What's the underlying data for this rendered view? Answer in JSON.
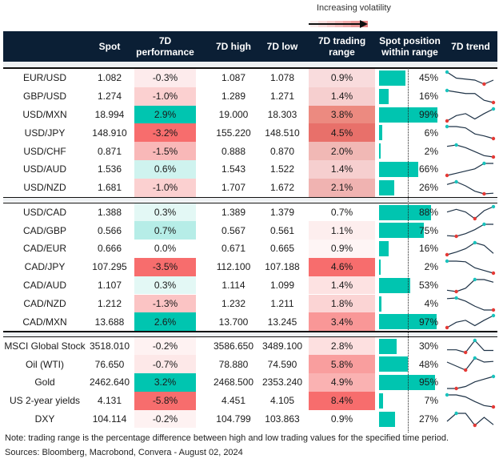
{
  "legend": {
    "label": "Increasing volatility",
    "gradient": [
      "#fdecec",
      "#fbdcdc",
      "#f8cccc",
      "#f5bcbc",
      "#f2abab",
      "#ee9a9a",
      "#ea8888"
    ]
  },
  "colors": {
    "header_bg": "#0b1f35",
    "bar": "#00c5b0",
    "trend_line": "#1f3347",
    "trend_high_marker": "#19c3bd",
    "trend_low_marker": "#e53935"
  },
  "headers": {
    "spot": "Spot",
    "perf": "7D\nperformance",
    "high": "7D high",
    "low": "7D low",
    "range": "7D trading\nrange",
    "position": "Spot position\nwithin range",
    "trend": "7D trend"
  },
  "groups": [
    {
      "rows": [
        {
          "name": "EUR/USD",
          "spot": "1.082",
          "perf": "-0.3%",
          "perf_bg": "#fdebec",
          "high": "1.087",
          "low": "1.078",
          "range": "0.9%",
          "range_bg": "#f9dcdd",
          "position": 45,
          "position_label": "45%",
          "trend": [
            6,
            3,
            2.5,
            2,
            0,
            2
          ]
        },
        {
          "name": "GBP/USD",
          "spot": "1.274",
          "perf": "-1.0%",
          "perf_bg": "#fbd0d0",
          "high": "1.289",
          "low": "1.271",
          "range": "1.4%",
          "range_bg": "#f6cfcf",
          "position": 16,
          "position_label": "16%",
          "trend": [
            8,
            7,
            6,
            6,
            1.5,
            0
          ]
        },
        {
          "name": "USD/MXN",
          "spot": "18.994",
          "perf": "2.9%",
          "perf_bg": "#00c5b0",
          "high": "19.000",
          "low": "18.303",
          "range": "3.8%",
          "range_bg": "#ec8a80",
          "position": 99,
          "position_label": "99%",
          "trend": [
            0,
            4,
            5.5,
            1.5,
            5.5,
            9
          ]
        },
        {
          "name": "USD/JPY",
          "spot": "148.910",
          "perf": "-3.2%",
          "perf_bg": "#f76d6d",
          "high": "155.220",
          "low": "148.510",
          "range": "4.5%",
          "range_bg": "#e8706a",
          "position": 6,
          "position_label": "6%",
          "trend": [
            9,
            9,
            8,
            3.5,
            2,
            0
          ]
        },
        {
          "name": "USD/CHF",
          "spot": "0.871",
          "perf": "-1.5%",
          "perf_bg": "#f9b8b8",
          "high": "0.888",
          "low": "0.870",
          "range": "2.0%",
          "range_bg": "#f1b8b5",
          "position": 2,
          "position_label": "2%",
          "trend": [
            8,
            9,
            7,
            4,
            1,
            0
          ]
        },
        {
          "name": "USD/AUD",
          "spot": "1.536",
          "perf": "0.6%",
          "perf_bg": "#cff3ef",
          "high": "1.543",
          "low": "1.522",
          "range": "1.4%",
          "range_bg": "#f6cfcf",
          "position": 66,
          "position_label": "66%",
          "trend": [
            0,
            2,
            4,
            6,
            11,
            11
          ]
        },
        {
          "name": "USD/NZD",
          "spot": "1.681",
          "perf": "-1.0%",
          "perf_bg": "#fbd0d0",
          "high": "1.707",
          "low": "1.672",
          "range": "2.1%",
          "range_bg": "#f0b3b1",
          "position": 26,
          "position_label": "26%",
          "trend": [
            7,
            9,
            6,
            2,
            0,
            0.5
          ]
        }
      ]
    },
    {
      "rows": [
        {
          "name": "USD/CAD",
          "spot": "1.388",
          "perf": "0.3%",
          "perf_bg": "#e3f8f5",
          "high": "1.389",
          "low": "1.379",
          "range": "0.7%",
          "range_bg": "#ffffff",
          "position": 88,
          "position_label": "88%",
          "trend": [
            5,
            7,
            5,
            0,
            6,
            9
          ]
        },
        {
          "name": "CAD/GBP",
          "spot": "0.566",
          "perf": "0.7%",
          "perf_bg": "#b6ede7",
          "high": "0.567",
          "low": "0.561",
          "range": "1.1%",
          "range_bg": "#fdeeee",
          "position": 75,
          "position_label": "75%",
          "trend": [
            0.5,
            0,
            2,
            5,
            9,
            9
          ]
        },
        {
          "name": "CAD/EUR",
          "spot": "0.666",
          "perf": "0.0%",
          "perf_bg": "#ffffff",
          "high": "0.671",
          "low": "0.665",
          "range": "0.9%",
          "range_bg": "#fef5f5",
          "position": 16,
          "position_label": "16%",
          "trend": [
            0,
            2,
            4.5,
            9,
            7,
            1
          ]
        },
        {
          "name": "CAD/JPY",
          "spot": "107.295",
          "perf": "-3.5%",
          "perf_bg": "#f76d6d",
          "high": "112.100",
          "low": "107.188",
          "range": "4.6%",
          "range_bg": "#f76d6d",
          "position": 2,
          "position_label": "2%",
          "trend": [
            9,
            9,
            8.5,
            4,
            2,
            0
          ]
        },
        {
          "name": "CAD/AUD",
          "spot": "1.107",
          "perf": "0.3%",
          "perf_bg": "#e3f8f5",
          "high": "1.114",
          "low": "1.099",
          "range": "1.4%",
          "range_bg": "#fde2e2",
          "position": 53,
          "position_label": "53%",
          "trend": [
            1,
            0,
            2.5,
            9,
            9,
            7
          ]
        },
        {
          "name": "CAD/NZD",
          "spot": "1.212",
          "perf": "-1.3%",
          "perf_bg": "#fbc4c4",
          "high": "1.232",
          "low": "1.211",
          "range": "1.8%",
          "range_bg": "#fbd4d4",
          "position": 4,
          "position_label": "4%",
          "trend": [
            9,
            9.5,
            7,
            3,
            0,
            0
          ]
        },
        {
          "name": "CAD/MXN",
          "spot": "13.688",
          "perf": "2.6%",
          "perf_bg": "#00c5b0",
          "high": "13.700",
          "low": "13.245",
          "range": "3.4%",
          "range_bg": "#f99797",
          "position": 97,
          "position_label": "97%",
          "trend": [
            0,
            4,
            5.5,
            1.5,
            5.5,
            9
          ]
        }
      ]
    },
    {
      "rows": [
        {
          "name": "MSCI Global Stock",
          "spot": "3518.010",
          "perf": "-0.2%",
          "perf_bg": "#fef2f2",
          "high": "3586.650",
          "low": "3489.100",
          "range": "2.8%",
          "range_bg": "#fde0e0",
          "position": 30,
          "position_label": "30%",
          "trend": [
            2,
            2,
            0,
            9,
            1.5,
            1.5
          ]
        },
        {
          "name": "Oil (WTI)",
          "spot": "76.650",
          "perf": "-0.7%",
          "perf_bg": "#fde8e8",
          "high": "78.880",
          "low": "74.590",
          "range": "5.8%",
          "range_bg": "#f99e9e",
          "position": 48,
          "position_label": "48%",
          "trend": [
            6,
            3,
            0,
            9,
            6,
            6.5
          ]
        },
        {
          "name": "Gold",
          "spot": "2462.640",
          "perf": "3.2%",
          "perf_bg": "#00c5b0",
          "high": "2468.500",
          "low": "2353.240",
          "range": "4.9%",
          "range_bg": "#fab2b2",
          "position": 95,
          "position_label": "95%",
          "trend": [
            0,
            0,
            1.5,
            5,
            7,
            9
          ]
        },
        {
          "name": "US 2-year yields",
          "spot": "4.131",
          "perf": "-5.8%",
          "perf_bg": "#f76d6d",
          "high": "4.451",
          "low": "4.105",
          "range": "8.4%",
          "range_bg": "#f76d6d",
          "position": 7,
          "position_label": "7%",
          "trend": [
            9,
            9,
            7.5,
            4,
            1,
            0
          ]
        },
        {
          "name": "DXY",
          "spot": "104.114",
          "perf": "-0.2%",
          "perf_bg": "#fef2f2",
          "high": "104.799",
          "low": "103.863",
          "range": "0.9%",
          "range_bg": "#ffffff",
          "position": 27,
          "position_label": "27%",
          "trend": [
            3,
            9,
            9,
            0,
            6,
            0.5
          ]
        }
      ]
    }
  ],
  "footer": {
    "note": "Note: trading range is the percentage difference between high and low trading values for the specified time period.",
    "sources": "Sources: Bloomberg, Macrobond, Convera - August 02, 2024"
  }
}
